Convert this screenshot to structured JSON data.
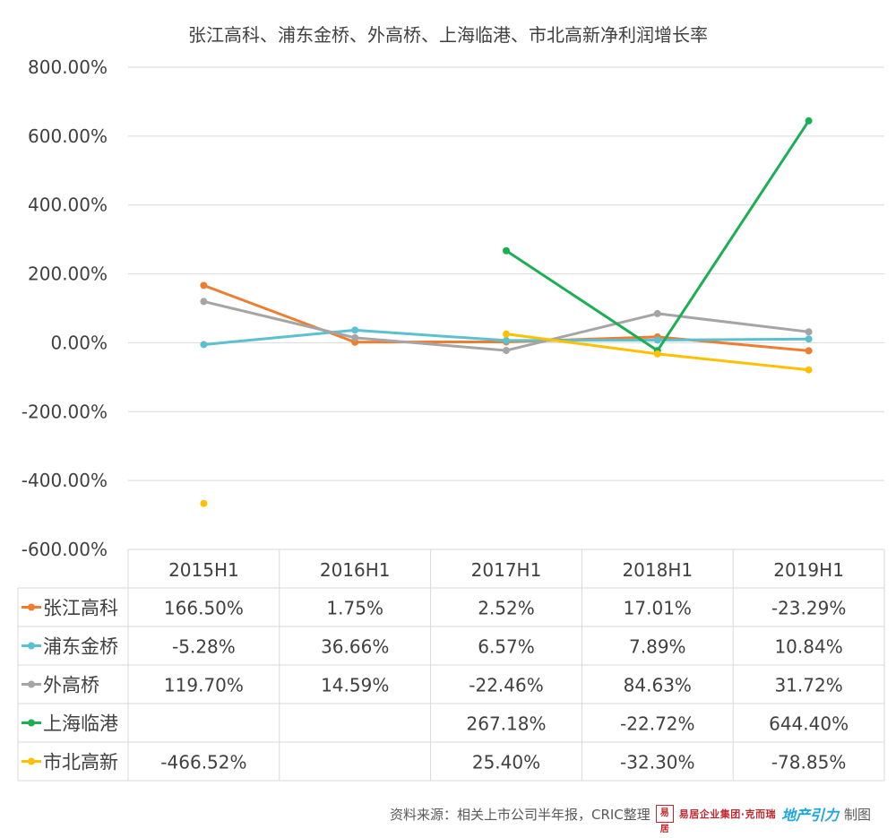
{
  "chart_data": {
    "type": "line",
    "title": "张江高科、浦东金桥、外高桥、上海临港、市北高新净利润增长率",
    "categories": [
      "2015H1",
      "2016H1",
      "2017H1",
      "2018H1",
      "2019H1"
    ],
    "ylim": [
      -600,
      800
    ],
    "yticks": [
      800,
      600,
      400,
      200,
      0,
      -200,
      -400,
      -600
    ],
    "ytick_labels": [
      "800.00%",
      "600.00%",
      "400.00%",
      "200.00%",
      "0.00%",
      "-200.00%",
      "-400.00%",
      "-600.00%"
    ],
    "grid": true,
    "legend": "data-table",
    "series": [
      {
        "name": "张江高科",
        "color": "#ED7D31",
        "values": [
          166.5,
          1.75,
          2.52,
          17.01,
          -23.29
        ],
        "labels": [
          "166.50%",
          "1.75%",
          "2.52%",
          "17.01%",
          "-23.29%"
        ]
      },
      {
        "name": "浦东金桥",
        "color": "#5BC0CF",
        "values": [
          -5.28,
          36.66,
          6.57,
          7.89,
          10.84
        ],
        "labels": [
          "-5.28%",
          "36.66%",
          "6.57%",
          "7.89%",
          "10.84%"
        ]
      },
      {
        "name": "外高桥",
        "color": "#A5A5A5",
        "values": [
          119.7,
          14.59,
          -22.46,
          84.63,
          31.72
        ],
        "labels": [
          "119.70%",
          "14.59%",
          "-22.46%",
          "84.63%",
          "31.72%"
        ]
      },
      {
        "name": "上海临港",
        "color": "#1AAF54",
        "values": [
          null,
          null,
          267.18,
          -22.72,
          644.4
        ],
        "labels": [
          "",
          "",
          "267.18%",
          "-22.72%",
          "644.40%"
        ]
      },
      {
        "name": "市北高新",
        "color": "#FFC000",
        "values": [
          -466.52,
          null,
          25.4,
          -32.3,
          -78.85
        ],
        "labels": [
          "-466.52%",
          "",
          "25.40%",
          "-32.30%",
          "-78.85%"
        ]
      }
    ]
  },
  "footer": {
    "source": "资料来源：相关上市公司半年报，CRIC整理",
    "logo_mark": "易居",
    "logo_text": "易居企业集团·克而瑞",
    "logo_blue": "地产引力",
    "suffix": "制图"
  }
}
